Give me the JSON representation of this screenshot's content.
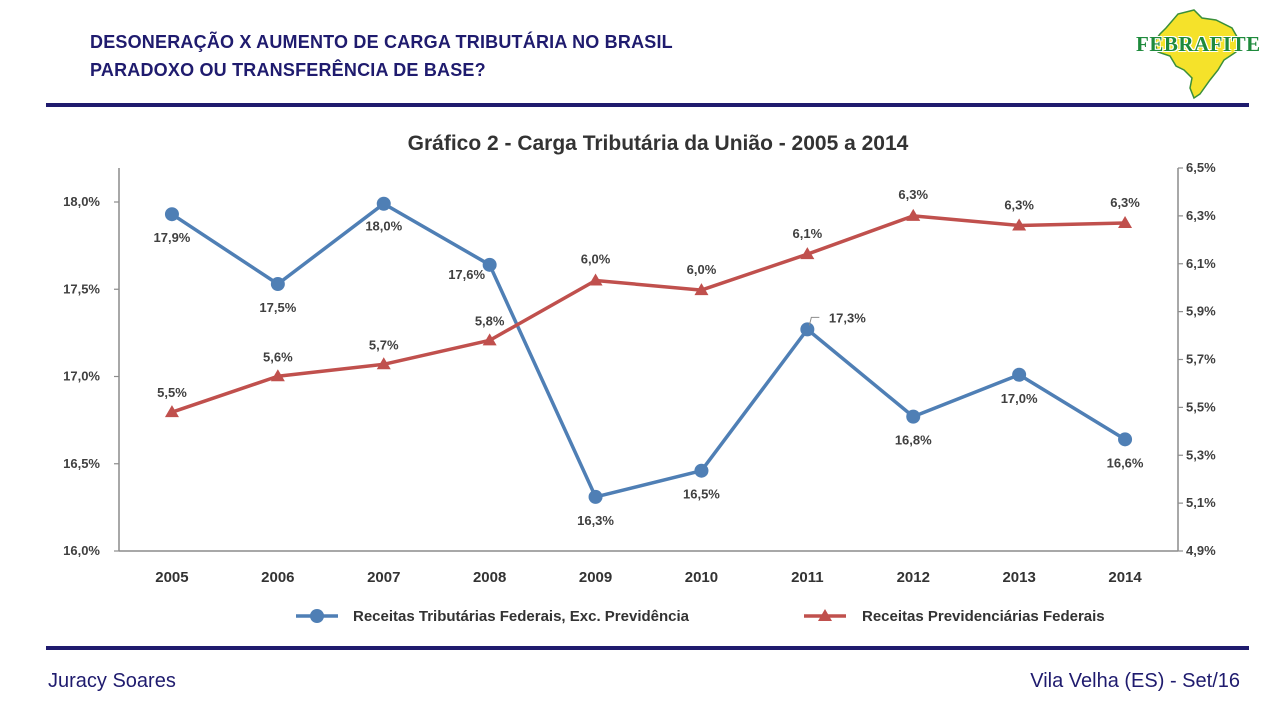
{
  "header": {
    "line1": "DESONERAÇÃO X AUMENTO DE CARGA TRIBUTÁRIA NO BRASIL",
    "line2": "PARADOXO OU TRANSFERÊNCIA DE BASE?"
  },
  "logo": {
    "text": "FEBRAFITE",
    "colors": {
      "map": "#f5e22a",
      "text": "#1e8a3c"
    }
  },
  "footer": {
    "left": "Juracy Soares",
    "right": "Vila Velha (ES) - Set/16"
  },
  "chart_data": {
    "type": "line",
    "title": "Gráfico 2 - Carga Tributária da União - 2005 a 2014",
    "categories": [
      "2005",
      "2006",
      "2007",
      "2008",
      "2009",
      "2010",
      "2011",
      "2012",
      "2013",
      "2014"
    ],
    "y_left": {
      "ticks": [
        "16,0%",
        "16,5%",
        "17,0%",
        "17,5%",
        "18,0%"
      ],
      "range": [
        16.0,
        18.2
      ]
    },
    "y_right": {
      "ticks": [
        "4,9%",
        "5,1%",
        "5,3%",
        "5,5%",
        "5,7%",
        "5,9%",
        "6,1%",
        "6,3%",
        "6,5%"
      ],
      "range": [
        4.9,
        6.5
      ]
    },
    "series": [
      {
        "name": "Receitas Tributárias Federais, Exc. Previdência",
        "axis": "left",
        "color": "#4f7fb5",
        "marker": "circle",
        "values": [
          17.93,
          17.53,
          17.99,
          17.64,
          16.31,
          16.46,
          17.27,
          16.77,
          17.01,
          16.64
        ],
        "labels": [
          "17,9%",
          "17,5%",
          "18,0%",
          "17,6%",
          "16,3%",
          "16,5%",
          "17,3%",
          "16,8%",
          "17,0%",
          "16,6%"
        ]
      },
      {
        "name": "Receitas Previdenciárias Federais",
        "axis": "right",
        "color": "#c0504d",
        "marker": "triangle",
        "values": [
          5.48,
          5.63,
          5.68,
          5.78,
          6.03,
          5.99,
          6.14,
          6.3,
          6.26,
          6.27
        ],
        "labels": [
          "5,5%",
          "5,6%",
          "5,7%",
          "5,8%",
          "6,0%",
          "6,0%",
          "6,1%",
          "6,3%",
          "6,3%",
          "6,3%"
        ]
      }
    ],
    "legend": "bottom"
  }
}
